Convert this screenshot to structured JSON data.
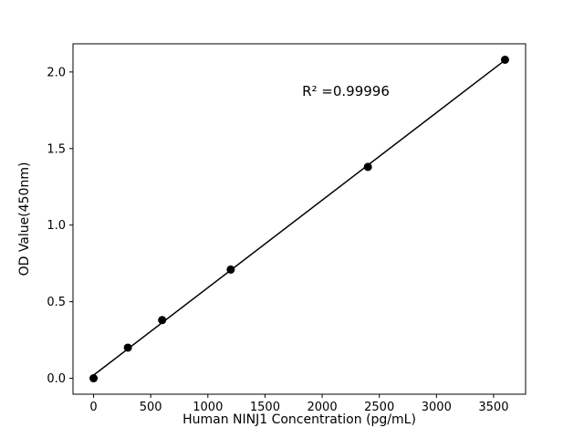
{
  "figure": {
    "background": "#ffffff"
  },
  "chart_data": {
    "type": "scatter",
    "title": "",
    "xlabel": "Human NINJ1 Concentration (pg/mL)",
    "ylabel": "OD Value(450nm)",
    "x": [
      0,
      300,
      600,
      1200,
      2400,
      3600
    ],
    "y": [
      0.0,
      0.2,
      0.38,
      0.71,
      1.38,
      2.08
    ],
    "xlim": [
      -180,
      3780
    ],
    "ylim": [
      -0.104,
      2.184
    ],
    "xticks": {
      "values": [
        0,
        500,
        1000,
        1500,
        2000,
        2500,
        3000,
        3500
      ],
      "labels": [
        "0",
        "500",
        "1000",
        "1500",
        "2000",
        "2500",
        "3000",
        "3500"
      ]
    },
    "yticks": {
      "values": [
        0,
        0.5,
        1.0,
        1.5,
        2.0
      ],
      "labels": [
        "0.0",
        "0.5",
        "1.0",
        "1.5",
        "2.0"
      ]
    },
    "annotation": {
      "text": "R² =0.99996",
      "r_squared": "0.99996"
    },
    "fit_line": "linear-least-squares",
    "marker_color": "#000000",
    "line_color": "#000000",
    "grid": false,
    "legend": "none"
  }
}
